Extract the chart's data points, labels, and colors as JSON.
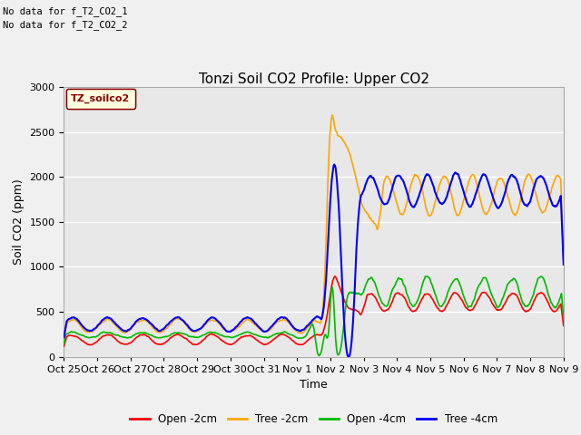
{
  "title": "Tonzi Soil CO2 Profile: Upper CO2",
  "ylabel": "Soil CO2 (ppm)",
  "xlabel": "Time",
  "no_data_text": [
    "No data for f_T2_CO2_1",
    "No data for f_T2_CO2_2"
  ],
  "legend_label_text": "TZ_soilco2",
  "yticks": [
    0,
    500,
    1000,
    1500,
    2000,
    2500,
    3000
  ],
  "ylim": [
    0,
    3000
  ],
  "xtick_labels": [
    "Oct 25",
    "Oct 26",
    "Oct 27",
    "Oct 28",
    "Oct 29",
    "Oct 30",
    "Oct 31",
    "Nov 1",
    "Nov 2",
    "Nov 3",
    "Nov 4",
    "Nov 5",
    "Nov 6",
    "Nov 7",
    "Nov 8",
    "Nov 9"
  ],
  "line_colors": {
    "open_2cm": "#ff0000",
    "tree_2cm": "#ffa500",
    "open_4cm": "#00bb00",
    "tree_4cm": "#0000ff"
  },
  "legend_entries": [
    "Open -2cm",
    "Tree -2cm",
    "Open -4cm",
    "Tree -4cm"
  ],
  "legend_colors": [
    "#ff0000",
    "#ffa500",
    "#00bb00",
    "#0000ff"
  ],
  "bg_color": "#f0f0f0",
  "plot_bg_color": "#e8e8e8",
  "grid_color": "#ffffff",
  "title_fontsize": 11,
  "axis_label_fontsize": 9,
  "tick_fontsize": 8,
  "legend_box_facecolor": "#ffffe0",
  "legend_box_edgecolor": "#8b0000",
  "legend_text_color": "#8b0000"
}
